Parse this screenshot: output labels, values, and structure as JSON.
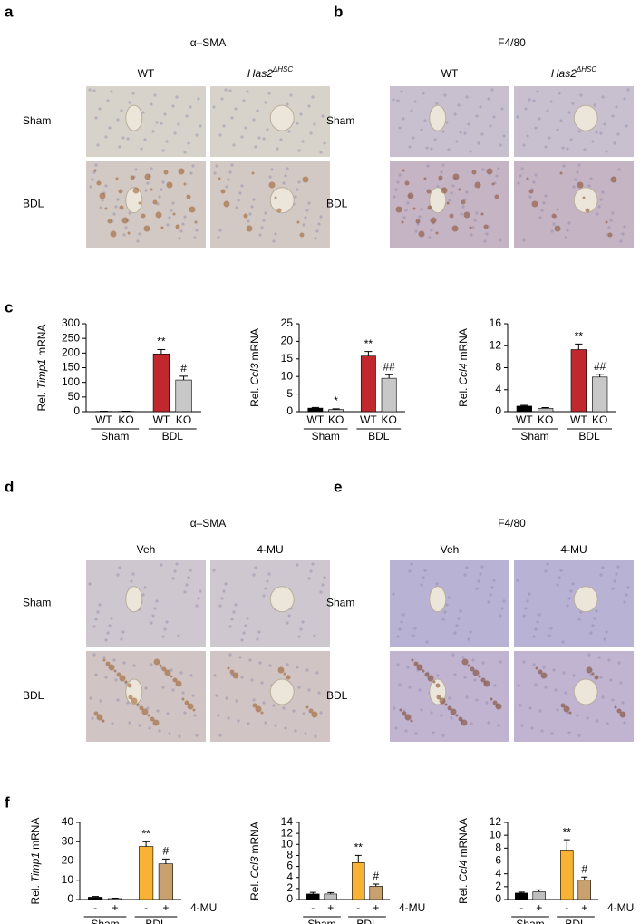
{
  "panel_labels": [
    "a",
    "b",
    "c",
    "d",
    "e",
    "f"
  ],
  "image_panels": [
    {
      "title": "α–SMA",
      "columns": [
        {
          "text": "WT"
        },
        {
          "text": "Has2",
          "superscript": "ΔHSC",
          "italic": true
        }
      ],
      "rows": [
        "Sham",
        "BDL"
      ]
    },
    {
      "title": "F4/80",
      "columns": [
        {
          "text": "WT"
        },
        {
          "text": "Has2",
          "superscript": "ΔHSC",
          "italic": true
        }
      ],
      "rows": [
        "Sham",
        "BDL"
      ]
    },
    {
      "title": "α–SMA",
      "columns": [
        {
          "text": "Veh"
        },
        {
          "text": "4-MU"
        }
      ],
      "rows": [
        "Sham",
        "BDL"
      ]
    },
    {
      "title": "F4/80",
      "columns": [
        {
          "text": "Veh"
        },
        {
          "text": "4-MU"
        }
      ],
      "rows": [
        "Sham",
        "BDL"
      ]
    }
  ],
  "chart_data": [
    {
      "type": "bar",
      "y_label": {
        "prefix": "Rel.",
        "gene": "Timp1",
        "suffix": "mRNA"
      },
      "categories": [
        "WT",
        "KO",
        "WT",
        "KO"
      ],
      "groups": [
        {
          "name": "Sham",
          "span": [
            0,
            1
          ]
        },
        {
          "name": "BDL",
          "span": [
            2,
            3
          ]
        }
      ],
      "values": [
        1,
        1,
        197,
        108
      ],
      "errors": [
        0.5,
        0.5,
        15,
        13
      ],
      "colors": [
        "#000000",
        "#bfbfbf",
        "#c0282d",
        "#c8c8c8"
      ],
      "annotations": [
        {
          "index": 2,
          "text": "**"
        },
        {
          "index": 3,
          "text": "#"
        }
      ],
      "ylim": [
        0,
        300
      ],
      "yticks": [
        0,
        50,
        100,
        150,
        200,
        250,
        300
      ]
    },
    {
      "type": "bar",
      "y_label": {
        "prefix": "Rel.",
        "gene": "Ccl3",
        "suffix": "mRNA"
      },
      "categories": [
        "WT",
        "KO",
        "WT",
        "KO"
      ],
      "groups": [
        {
          "name": "Sham",
          "span": [
            0,
            1
          ]
        },
        {
          "name": "BDL",
          "span": [
            2,
            3
          ]
        }
      ],
      "values": [
        1,
        0.6,
        15.8,
        9.5
      ],
      "errors": [
        0.2,
        0.2,
        1.3,
        1
      ],
      "colors": [
        "#000000",
        "#bfbfbf",
        "#c0282d",
        "#c8c8c8"
      ],
      "annotations": [
        {
          "index": 1,
          "text": "*"
        },
        {
          "index": 2,
          "text": "**"
        },
        {
          "index": 3,
          "text": "##"
        }
      ],
      "ylim": [
        0,
        25
      ],
      "yticks": [
        0,
        5,
        10,
        15,
        20,
        25
      ]
    },
    {
      "type": "bar",
      "y_label": {
        "prefix": "Rel.",
        "gene": "Ccl4",
        "suffix": "mRNA"
      },
      "categories": [
        "WT",
        "KO",
        "WT",
        "KO"
      ],
      "groups": [
        {
          "name": "Sham",
          "span": [
            0,
            1
          ]
        },
        {
          "name": "BDL",
          "span": [
            2,
            3
          ]
        }
      ],
      "values": [
        1,
        0.6,
        11.3,
        6.3
      ],
      "errors": [
        0.15,
        0.15,
        1,
        0.5
      ],
      "colors": [
        "#000000",
        "#bfbfbf",
        "#c0282d",
        "#c8c8c8"
      ],
      "annotations": [
        {
          "index": 2,
          "text": "**"
        },
        {
          "index": 3,
          "text": "##"
        }
      ],
      "ylim": [
        0,
        16
      ],
      "yticks": [
        0,
        4,
        8,
        12,
        16
      ]
    },
    {
      "type": "bar",
      "y_label": {
        "prefix": "Rel.",
        "gene": "Timp1",
        "suffix": "mRNA"
      },
      "categories": [
        "-",
        "+",
        "-",
        "+"
      ],
      "groups": [
        {
          "name": "Sham",
          "span": [
            0,
            1
          ]
        },
        {
          "name": "BDL",
          "span": [
            2,
            3
          ]
        }
      ],
      "treatment_label": "4-MU",
      "values": [
        1.2,
        0.5,
        27.5,
        18.5
      ],
      "errors": [
        0.4,
        0.2,
        2.5,
        2.5
      ],
      "colors": [
        "#000000",
        "#bfbfbf",
        "#f9b233",
        "#c8a16e"
      ],
      "annotations": [
        {
          "index": 2,
          "text": "**"
        },
        {
          "index": 3,
          "text": "#"
        }
      ],
      "ylim": [
        0,
        40
      ],
      "yticks": [
        0,
        10,
        20,
        30,
        40
      ]
    },
    {
      "type": "bar",
      "y_label": {
        "prefix": "Rel.",
        "gene": "Ccl3",
        "suffix": "mRNA"
      },
      "categories": [
        "-",
        "+",
        "-",
        "+"
      ],
      "groups": [
        {
          "name": "Sham",
          "span": [
            0,
            1
          ]
        },
        {
          "name": "BDL",
          "span": [
            2,
            3
          ]
        }
      ],
      "treatment_label": "4-MU",
      "values": [
        1,
        1,
        6.7,
        2.4
      ],
      "errors": [
        0.3,
        0.25,
        1.3,
        0.4
      ],
      "colors": [
        "#000000",
        "#bfbfbf",
        "#f9b233",
        "#c8a16e"
      ],
      "annotations": [
        {
          "index": 2,
          "text": "**"
        },
        {
          "index": 3,
          "text": "#"
        }
      ],
      "ylim": [
        0,
        14
      ],
      "yticks": [
        0,
        2,
        4,
        6,
        8,
        10,
        12,
        14
      ]
    },
    {
      "type": "bar",
      "y_label": {
        "prefix": "Rel.",
        "gene": "Ccl4",
        "suffix": "mRNAA"
      },
      "categories": [
        "-",
        "+",
        "-",
        "+"
      ],
      "groups": [
        {
          "name": "Sham",
          "span": [
            0,
            1
          ]
        },
        {
          "name": "BDL",
          "span": [
            2,
            3
          ]
        }
      ],
      "treatment_label": "4-MU",
      "values": [
        1,
        1.2,
        7.7,
        3
      ],
      "errors": [
        0.15,
        0.3,
        1.6,
        0.5
      ],
      "colors": [
        "#000000",
        "#bfbfbf",
        "#f9b233",
        "#c8a16e"
      ],
      "annotations": [
        {
          "index": 2,
          "text": "**"
        },
        {
          "index": 3,
          "text": "#"
        }
      ],
      "ylim": [
        0,
        12
      ],
      "yticks": [
        0,
        2,
        4,
        6,
        8,
        10,
        12
      ]
    }
  ]
}
